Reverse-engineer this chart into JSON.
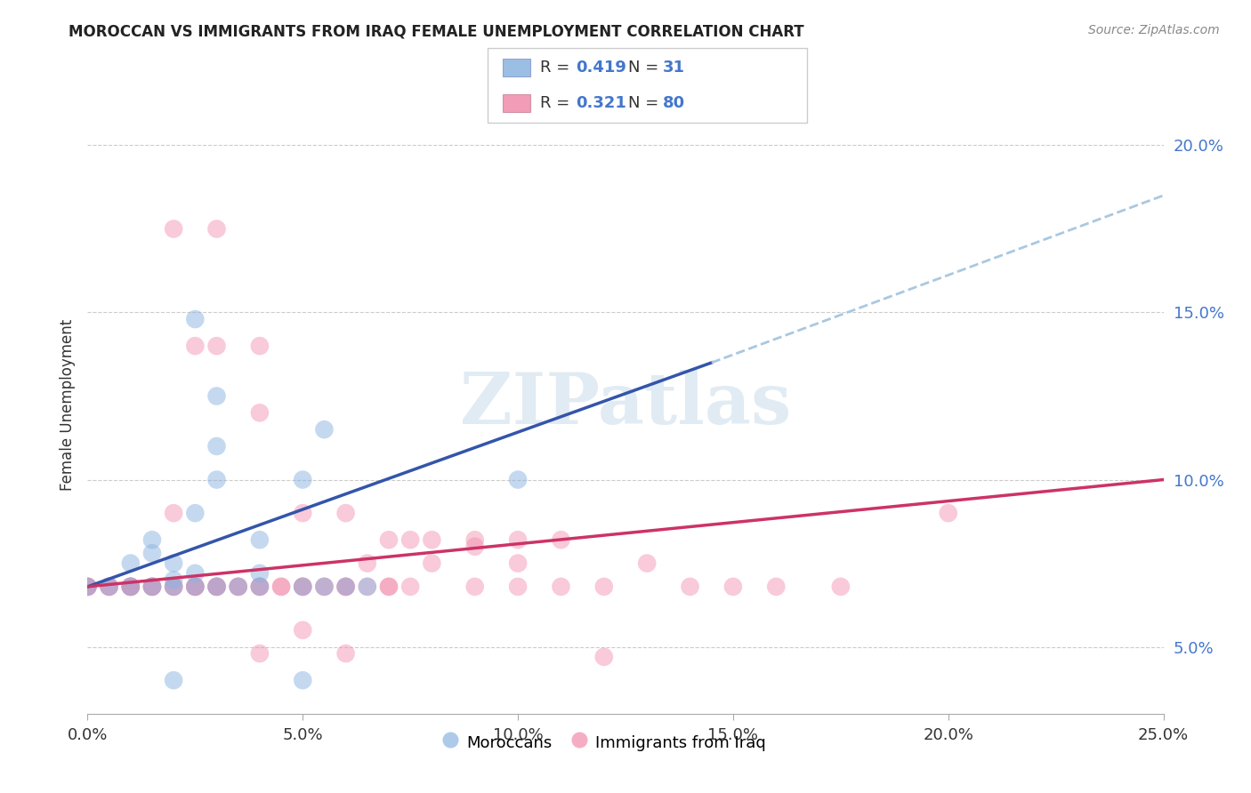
{
  "title": "MOROCCAN VS IMMIGRANTS FROM IRAQ FEMALE UNEMPLOYMENT CORRELATION CHART",
  "source": "Source: ZipAtlas.com",
  "ylabel": "Female Unemployment",
  "xlim": [
    0.0,
    0.25
  ],
  "ylim": [
    0.03,
    0.215
  ],
  "xtick_positions": [
    0.0,
    0.05,
    0.1,
    0.15,
    0.2,
    0.25
  ],
  "xtick_labels": [
    "0.0%",
    "5.0%",
    "10.0%",
    "15.0%",
    "20.0%",
    "25.0%"
  ],
  "ytick_positions": [
    0.05,
    0.1,
    0.15,
    0.2
  ],
  "ytick_labels": [
    "5.0%",
    "10.0%",
    "15.0%",
    "20.0%"
  ],
  "bottom_legend": [
    "Moroccans",
    "Immigrants from Iraq"
  ],
  "watermark": "ZIPatlas",
  "blue_scatter_color": "#8ab4e0",
  "pink_scatter_color": "#f28bab",
  "blue_line_color": "#3355aa",
  "pink_line_color": "#cc3366",
  "dashed_line_color": "#aac8e0",
  "legend_text_color": "#4477cc",
  "grid_color": "#cccccc",
  "title_color": "#222222",
  "source_color": "#888888",
  "yaxis_label_color": "#333333",
  "right_tick_color": "#4477cc",
  "blue_line_x0": 0.0,
  "blue_line_y0": 0.068,
  "blue_line_x1": 0.145,
  "blue_line_y1": 0.135,
  "dash_line_x0": 0.145,
  "dash_line_y0": 0.135,
  "dash_line_x1": 0.25,
  "dash_line_y1": 0.185,
  "pink_line_x0": 0.0,
  "pink_line_y0": 0.068,
  "pink_line_x1": 0.25,
  "pink_line_y1": 0.1,
  "blue_pts_x": [
    0.0,
    0.005,
    0.01,
    0.01,
    0.015,
    0.015,
    0.015,
    0.02,
    0.02,
    0.02,
    0.025,
    0.025,
    0.025,
    0.03,
    0.03,
    0.03,
    0.035,
    0.04,
    0.04,
    0.05,
    0.055,
    0.06,
    0.065,
    0.025,
    0.03,
    0.04,
    0.05,
    0.055,
    0.1,
    0.05,
    0.02
  ],
  "blue_pts_y": [
    0.068,
    0.068,
    0.068,
    0.075,
    0.068,
    0.078,
    0.082,
    0.068,
    0.07,
    0.075,
    0.068,
    0.072,
    0.09,
    0.068,
    0.11,
    0.125,
    0.068,
    0.068,
    0.072,
    0.068,
    0.068,
    0.068,
    0.068,
    0.148,
    0.1,
    0.082,
    0.1,
    0.115,
    0.1,
    0.04,
    0.04
  ],
  "pink_pts_x": [
    0.0,
    0.0,
    0.0,
    0.0,
    0.005,
    0.005,
    0.005,
    0.01,
    0.01,
    0.01,
    0.01,
    0.01,
    0.015,
    0.015,
    0.015,
    0.015,
    0.02,
    0.02,
    0.02,
    0.02,
    0.025,
    0.025,
    0.025,
    0.025,
    0.03,
    0.03,
    0.03,
    0.03,
    0.035,
    0.035,
    0.035,
    0.04,
    0.04,
    0.04,
    0.045,
    0.045,
    0.05,
    0.05,
    0.05,
    0.055,
    0.055,
    0.06,
    0.06,
    0.06,
    0.065,
    0.065,
    0.07,
    0.07,
    0.075,
    0.075,
    0.08,
    0.09,
    0.09,
    0.1,
    0.1,
    0.1,
    0.11,
    0.11,
    0.12,
    0.13,
    0.14,
    0.15,
    0.16,
    0.175,
    0.02,
    0.025,
    0.03,
    0.03,
    0.04,
    0.04,
    0.05,
    0.05,
    0.06,
    0.07,
    0.08,
    0.09,
    0.12,
    0.2,
    0.04,
    0.06
  ],
  "pink_pts_y": [
    0.068,
    0.068,
    0.068,
    0.068,
    0.068,
    0.068,
    0.068,
    0.068,
    0.068,
    0.068,
    0.068,
    0.068,
    0.068,
    0.068,
    0.068,
    0.068,
    0.068,
    0.068,
    0.068,
    0.09,
    0.068,
    0.068,
    0.068,
    0.068,
    0.068,
    0.068,
    0.068,
    0.068,
    0.068,
    0.068,
    0.068,
    0.068,
    0.068,
    0.068,
    0.068,
    0.068,
    0.068,
    0.068,
    0.068,
    0.068,
    0.068,
    0.068,
    0.068,
    0.068,
    0.068,
    0.075,
    0.068,
    0.068,
    0.068,
    0.082,
    0.075,
    0.08,
    0.068,
    0.075,
    0.082,
    0.068,
    0.082,
    0.068,
    0.068,
    0.075,
    0.068,
    0.068,
    0.068,
    0.068,
    0.175,
    0.14,
    0.175,
    0.14,
    0.14,
    0.12,
    0.09,
    0.055,
    0.09,
    0.082,
    0.082,
    0.082,
    0.047,
    0.09,
    0.048,
    0.048
  ]
}
